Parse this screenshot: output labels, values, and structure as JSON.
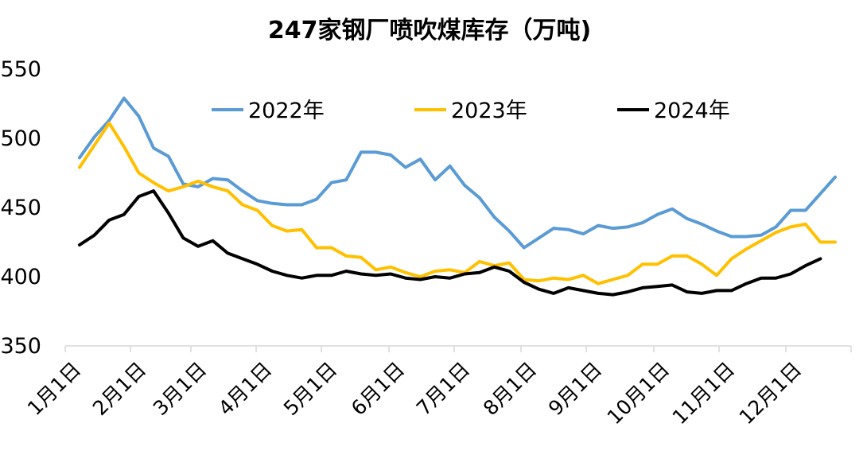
{
  "chart_data": {
    "type": "line",
    "title": "247家钢厂喷吹煤库存（万吨)",
    "xlabel": "",
    "ylabel": "",
    "ylim": [
      350,
      550
    ],
    "yticks": [
      350,
      400,
      450,
      500,
      550
    ],
    "x_tick_labels": [
      "1月1日",
      "2月1日",
      "3月1日",
      "4月1日",
      "5月1日",
      "6月1日",
      "7月1日",
      "8月1日",
      "9月1日",
      "10月1日",
      "11月1日",
      "12月1日"
    ],
    "legend_position": "top",
    "grid": false,
    "series": [
      {
        "name": "2022年",
        "color": "#5B9BD5",
        "values": [
          486,
          501,
          513,
          529,
          516,
          493,
          487,
          467,
          465,
          471,
          470,
          462,
          455,
          453,
          452,
          452,
          456,
          468,
          470,
          490,
          490,
          488,
          479,
          485,
          470,
          480,
          466,
          457,
          443,
          433,
          421,
          428,
          435,
          434,
          431,
          437,
          435,
          436,
          439,
          445,
          449,
          442,
          438,
          433,
          429,
          429,
          430,
          436,
          448,
          448,
          460,
          472
        ]
      },
      {
        "name": "2023年",
        "color": "#FFC000",
        "values": [
          479,
          495,
          511,
          494,
          475,
          468,
          462,
          465,
          469,
          465,
          462,
          452,
          448,
          437,
          433,
          434,
          421,
          421,
          415,
          414,
          405,
          407,
          403,
          400,
          404,
          405,
          403,
          411,
          408,
          410,
          398,
          397,
          399,
          398,
          401,
          395,
          398,
          401,
          409,
          409,
          415,
          415,
          409,
          401,
          413,
          420,
          426,
          432,
          436,
          438,
          425,
          425
        ]
      },
      {
        "name": "2024年",
        "color": "#000000",
        "values": [
          423,
          430,
          441,
          445,
          458,
          462,
          446,
          428,
          422,
          426,
          417,
          413,
          409,
          404,
          401,
          399,
          401,
          401,
          404,
          402,
          401,
          402,
          399,
          398,
          400,
          399,
          402,
          403,
          407,
          404,
          396,
          391,
          388,
          392,
          390,
          388,
          387,
          389,
          392,
          393,
          394,
          389,
          388,
          390,
          390,
          395,
          399,
          399,
          402,
          408,
          413
        ]
      }
    ]
  }
}
